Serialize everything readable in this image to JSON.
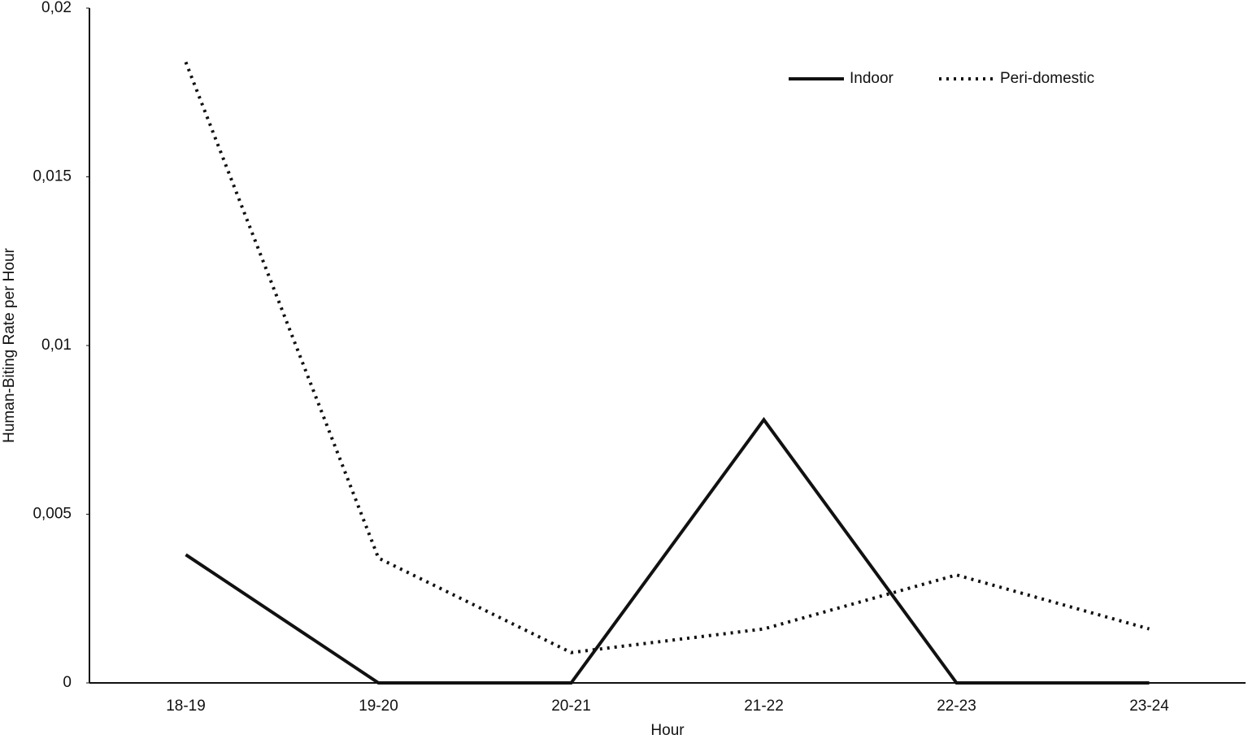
{
  "chart_data": {
    "type": "line",
    "x_label": "Hour",
    "y_label": "Human-Biting Rate per Hour",
    "categories": [
      "18-19",
      "19-20",
      "20-21",
      "21-22",
      "22-23",
      "23-24"
    ],
    "series": [
      {
        "name": "Indoor",
        "color": "#111111",
        "line_style": "solid",
        "values": [
          0.0038,
          0,
          0,
          0.0078,
          0,
          0
        ]
      },
      {
        "name": "Peri-domestic",
        "color": "#111111",
        "line_style": "dotted",
        "values": [
          0.0184,
          0.0037,
          0.0009,
          0.0016,
          0.0032,
          0.0016
        ]
      }
    ],
    "ylim": [
      0,
      0.02
    ],
    "yticks": [
      0,
      {
        "value": 0.005,
        "label": "0,005"
      },
      {
        "value": 0.01,
        "label": "0,01"
      },
      {
        "value": 0.015,
        "label": "0,015"
      },
      {
        "value": 0.02,
        "label": "0,02"
      }
    ],
    "grid": false,
    "legend": "top-right"
  }
}
